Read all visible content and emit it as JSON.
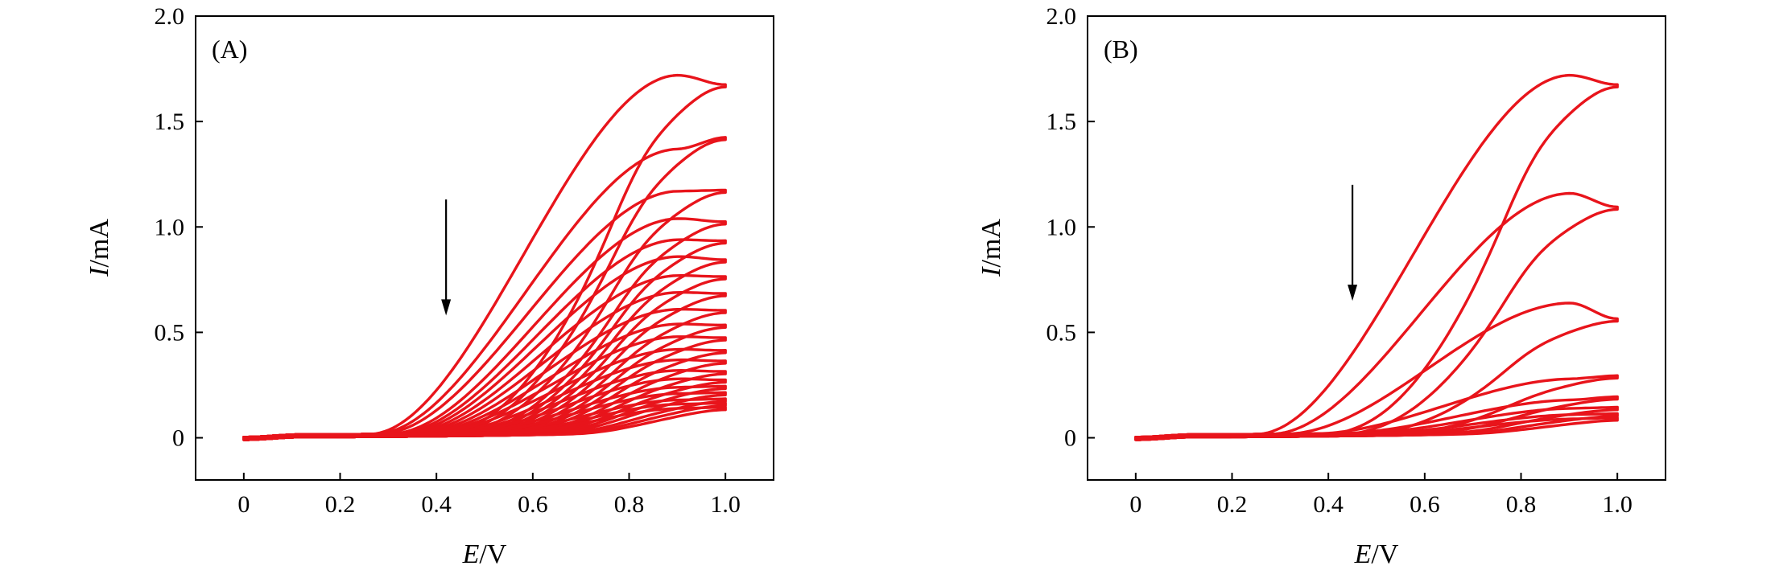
{
  "chart_data": [
    {
      "type": "line",
      "panel_label": "(A)",
      "xlabel_italic": "E",
      "xlabel_unit": "/V",
      "ylabel_italic": "I",
      "ylabel_unit": "/mA",
      "xlim": [
        -0.1,
        1.1
      ],
      "ylim": [
        -0.2,
        2.0
      ],
      "xticks": [
        0,
        0.2,
        0.4,
        0.6,
        0.8,
        1.0
      ],
      "xtick_labels": [
        "0",
        "0.2",
        "0.4",
        "0.6",
        "0.8",
        "1.0"
      ],
      "yticks": [
        0,
        0.5,
        1.0,
        1.5,
        2.0
      ],
      "ytick_labels": [
        "0",
        "0.5",
        "1.0",
        "1.5",
        "2.0"
      ],
      "line_color": "#e8141b",
      "arrow": {
        "x": 0.42,
        "y_from": 1.13,
        "y_to": 0.58
      },
      "cycles": [
        {
          "peak": 1.68,
          "end": 1.63,
          "onset": 0.26
        },
        {
          "peak": 1.33,
          "end": 1.38,
          "onset": 0.27
        },
        {
          "peak": 1.13,
          "end": 1.13,
          "onset": 0.28
        },
        {
          "peak": 1.0,
          "end": 0.98,
          "onset": 0.3
        },
        {
          "peak": 0.9,
          "end": 0.89,
          "onset": 0.31
        },
        {
          "peak": 0.82,
          "end": 0.8,
          "onset": 0.32
        },
        {
          "peak": 0.73,
          "end": 0.72,
          "onset": 0.33
        },
        {
          "peak": 0.65,
          "end": 0.64,
          "onset": 0.34
        },
        {
          "peak": 0.57,
          "end": 0.56,
          "onset": 0.35
        },
        {
          "peak": 0.5,
          "end": 0.49,
          "onset": 0.36
        },
        {
          "peak": 0.44,
          "end": 0.43,
          "onset": 0.37
        },
        {
          "peak": 0.38,
          "end": 0.37,
          "onset": 0.38
        },
        {
          "peak": 0.33,
          "end": 0.32,
          "onset": 0.4
        },
        {
          "peak": 0.28,
          "end": 0.27,
          "onset": 0.41
        },
        {
          "peak": 0.24,
          "end": 0.23,
          "onset": 0.43
        },
        {
          "peak": 0.2,
          "end": 0.2,
          "onset": 0.45
        },
        {
          "peak": 0.17,
          "end": 0.17,
          "onset": 0.47
        },
        {
          "peak": 0.14,
          "end": 0.14,
          "onset": 0.5
        },
        {
          "peak": 0.12,
          "end": 0.12,
          "onset": 0.53
        },
        {
          "peak": 0.1,
          "end": 0.1,
          "onset": 0.56
        }
      ]
    },
    {
      "type": "line",
      "panel_label": "(B)",
      "xlabel_italic": "E",
      "xlabel_unit": "/V",
      "ylabel_italic": "I",
      "ylabel_unit": "/mA",
      "xlim": [
        -0.1,
        1.1
      ],
      "ylim": [
        -0.2,
        2.0
      ],
      "xticks": [
        0,
        0.2,
        0.4,
        0.6,
        0.8,
        1.0
      ],
      "xtick_labels": [
        "0",
        "0.2",
        "0.4",
        "0.6",
        "0.8",
        "1.0"
      ],
      "yticks": [
        0,
        0.5,
        1.0,
        1.5,
        2.0
      ],
      "ytick_labels": [
        "0",
        "0.5",
        "1.0",
        "1.5",
        "2.0"
      ],
      "line_color": "#e8141b",
      "arrow": {
        "x": 0.45,
        "y_from": 1.2,
        "y_to": 0.65
      },
      "cycles": [
        {
          "peak": 1.68,
          "end": 1.63,
          "onset": 0.25
        },
        {
          "peak": 1.12,
          "end": 1.05,
          "onset": 0.28
        },
        {
          "peak": 0.6,
          "end": 0.52,
          "onset": 0.31
        },
        {
          "peak": 0.24,
          "end": 0.25,
          "onset": 0.37
        },
        {
          "peak": 0.14,
          "end": 0.15,
          "onset": 0.42
        },
        {
          "peak": 0.1,
          "end": 0.1,
          "onset": 0.46
        },
        {
          "peak": 0.07,
          "end": 0.07,
          "onset": 0.5
        },
        {
          "peak": 0.05,
          "end": 0.05,
          "onset": 0.55
        }
      ]
    }
  ]
}
